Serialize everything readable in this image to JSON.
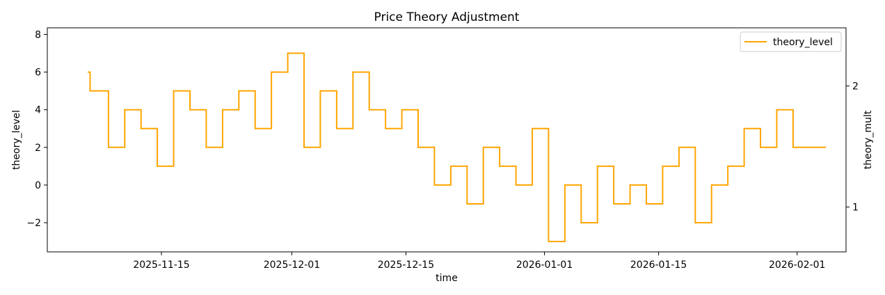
{
  "chart_data": {
    "type": "line",
    "title": "Price Theory Adjustment",
    "xlabel": "time",
    "ylabel": "theory_level",
    "y2label": "theory_mult",
    "xlim": [
      "2025-11-01",
      "2026-02-07"
    ],
    "ylim": [
      -3.55,
      8.35
    ],
    "y2lim": [
      0.63,
      2.48
    ],
    "x_ticks": [
      "2025-11-15",
      "2025-12-01",
      "2025-12-15",
      "2026-01-01",
      "2026-01-15",
      "2026-02-01"
    ],
    "y_ticks": [
      -2,
      0,
      2,
      4,
      6,
      8
    ],
    "y_tick_labels": [
      "−2",
      "0",
      "2",
      "4",
      "6",
      "8"
    ],
    "y2_ticks": [
      1,
      2
    ],
    "y2_tick_labels": [
      "1",
      "2"
    ],
    "legend": "top-right",
    "grid": false,
    "series": [
      {
        "name": "theory_level",
        "color": "#ffa500",
        "drawstyle": "steps-post",
        "x": [
          "2025-11-06T00:00",
          "2025-11-06T06:00",
          "2025-11-08T12:00",
          "2025-11-10T12:00",
          "2025-11-12T12:00",
          "2025-11-14T12:00",
          "2025-11-16T12:00",
          "2025-11-18T12:00",
          "2025-11-20T12:00",
          "2025-11-22T12:00",
          "2025-11-24T12:00",
          "2025-11-26T12:00",
          "2025-11-28T12:00",
          "2025-11-30T12:00",
          "2025-12-02T12:00",
          "2025-12-04T12:00",
          "2025-12-06T12:00",
          "2025-12-08T12:00",
          "2025-12-10T12:00",
          "2025-12-12T12:00",
          "2025-12-14T12:00",
          "2025-12-16T12:00",
          "2025-12-18T12:00",
          "2025-12-20T12:00",
          "2025-12-22T12:00",
          "2025-12-24T12:00",
          "2025-12-26T12:00",
          "2025-12-28T12:00",
          "2025-12-30T12:00",
          "2026-01-01T12:00",
          "2026-01-03T12:00",
          "2026-01-05T12:00",
          "2026-01-07T12:00",
          "2026-01-09T12:00",
          "2026-01-11T12:00",
          "2026-01-13T12:00",
          "2026-01-15T12:00",
          "2026-01-17T12:00",
          "2026-01-19T12:00",
          "2026-01-21T12:00",
          "2026-01-23T12:00",
          "2026-01-25T12:00",
          "2026-01-27T12:00",
          "2026-01-29T12:00",
          "2026-01-31T12:00",
          "2026-02-02T12:00",
          "2026-02-04T12:00"
        ],
        "values": [
          6,
          5,
          2,
          4,
          3,
          1,
          5,
          4,
          2,
          4,
          5,
          3,
          6,
          7,
          2,
          5,
          3,
          6,
          4,
          3,
          4,
          2,
          0,
          1,
          -1,
          2,
          1,
          0,
          3,
          -3,
          0,
          -2,
          1,
          -1,
          0,
          -1,
          1,
          2,
          -2,
          0,
          1,
          3,
          2,
          4,
          2,
          2,
          2
        ]
      }
    ]
  }
}
